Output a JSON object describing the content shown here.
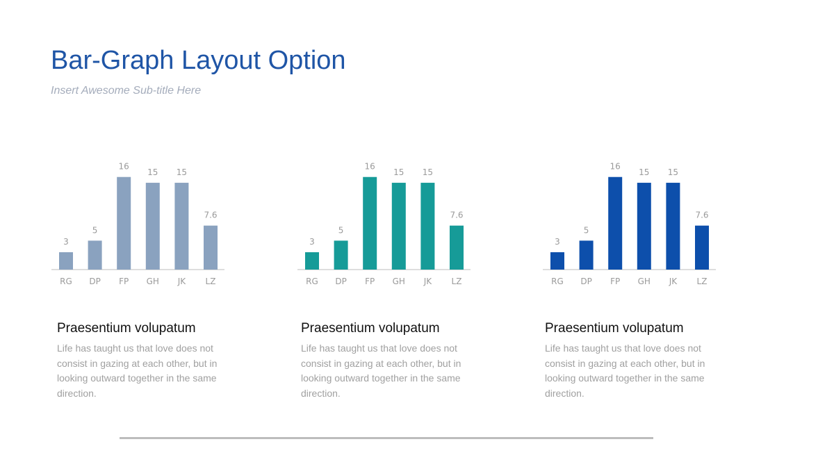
{
  "header": {
    "title": "Bar-Graph Layout Option",
    "subtitle": "Insert Awesome Sub-title Here"
  },
  "chart_data": [
    {
      "type": "bar",
      "categories": [
        "RG",
        "DP",
        "FP",
        "GH",
        "JK",
        "LZ"
      ],
      "values": [
        3,
        5,
        16,
        15,
        15,
        7.6
      ],
      "color": "#8aa2bf"
    },
    {
      "type": "bar",
      "categories": [
        "RG",
        "DP",
        "FP",
        "GH",
        "JK",
        "LZ"
      ],
      "values": [
        3,
        5,
        16,
        15,
        15,
        7.6
      ],
      "color": "#169b98"
    },
    {
      "type": "bar",
      "categories": [
        "RG",
        "DP",
        "FP",
        "GH",
        "JK",
        "LZ"
      ],
      "values": [
        3,
        5,
        16,
        15,
        15,
        7.6
      ],
      "color": "#0d4fab"
    }
  ],
  "panels": [
    {
      "heading": "Praesentium volupatum",
      "body": "Life has taught us that love does not consist in gazing at each other, but in looking outward together in the same direction."
    },
    {
      "heading": "Praesentium volupatum",
      "body": "Life has taught us that love does not consist in gazing at each other, but in looking outward together in the same direction."
    },
    {
      "heading": "Praesentium volupatum",
      "body": "Life has taught us that love does not consist in gazing at each other, but in looking outward together in the same direction."
    }
  ]
}
